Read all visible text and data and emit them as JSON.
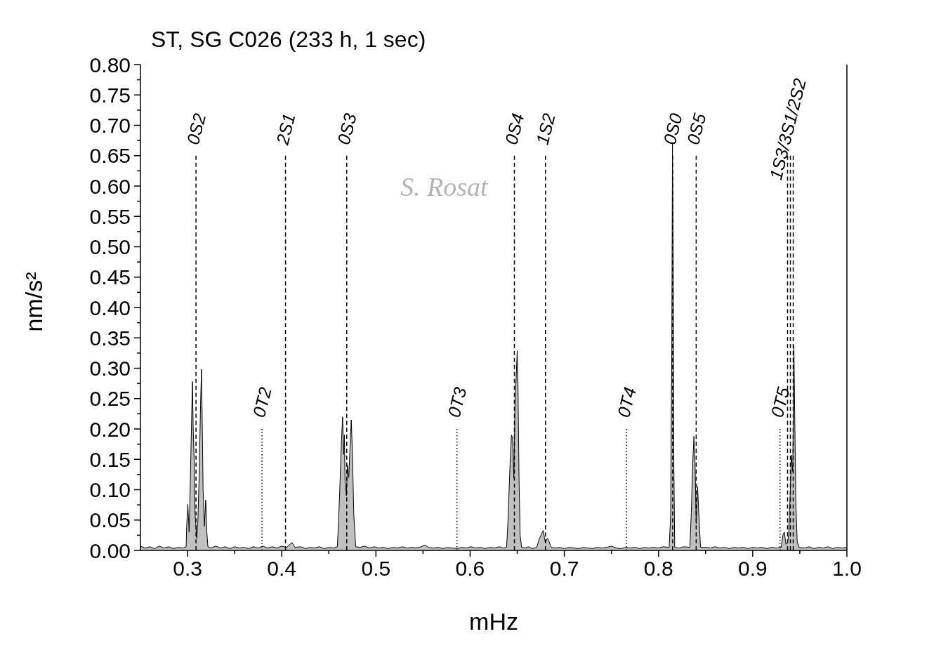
{
  "chart_data": {
    "type": "area",
    "title": "ST, SG C026 (233 h, 1 sec)",
    "xlabel": "mHz",
    "ylabel": "nm/s²",
    "annotations": [
      "S. Rosat"
    ],
    "xlim": [
      0.25,
      1
    ],
    "xticks": [
      0.3,
      {
        "value": 0.35,
        "label": null
      },
      0.4,
      {
        "value": 0.45,
        "label": null
      },
      0.5,
      {
        "value": 0.55,
        "label": null
      },
      0.6,
      {
        "value": 0.65,
        "label": null
      },
      0.7,
      {
        "value": 0.75,
        "label": null
      },
      0.8,
      {
        "value": 0.85,
        "label": null
      },
      0.9,
      {
        "value": 0.95,
        "label": null
      },
      {
        "value": 1,
        "label": "1.0"
      }
    ],
    "ylim": [
      0,
      0.8
    ],
    "yticks": [
      {
        "value": 0,
        "label": "0.00"
      },
      {
        "value": 0.025,
        "label": null
      },
      0.05,
      {
        "value": 0.075,
        "label": null
      },
      {
        "value": 0.1,
        "label": "0.10"
      },
      {
        "value": 0.125,
        "label": null
      },
      0.15,
      {
        "value": 0.175,
        "label": null
      },
      {
        "value": 0.2,
        "label": "0.20"
      },
      {
        "value": 0.225,
        "label": null
      },
      0.25,
      {
        "value": 0.275,
        "label": null
      },
      {
        "value": 0.3,
        "label": "0.30"
      },
      {
        "value": 0.325,
        "label": null
      },
      0.35,
      {
        "value": 0.375,
        "label": null
      },
      {
        "value": 0.4,
        "label": "0.40"
      },
      {
        "value": 0.425,
        "label": null
      },
      0.45,
      {
        "value": 0.475,
        "label": null
      },
      {
        "value": 0.5,
        "label": "0.50"
      },
      {
        "value": 0.525,
        "label": null
      },
      0.55,
      {
        "value": 0.575,
        "label": null
      },
      {
        "value": 0.6,
        "label": "0.60"
      },
      {
        "value": 0.625,
        "label": null
      },
      0.65,
      {
        "value": 0.675,
        "label": null
      },
      {
        "value": 0.7,
        "label": "0.70"
      },
      {
        "value": 0.725,
        "label": null
      },
      0.75,
      {
        "value": 0.775,
        "label": null
      },
      {
        "value": 0.8,
        "label": "0.80"
      }
    ],
    "color": "#c0c0c0",
    "x": [
      0.25,
      0.255,
      0.26,
      0.265,
      0.27,
      0.275,
      0.28,
      0.285,
      0.29,
      0.295,
      0.2985,
      0.2991,
      0.3003,
      0.3017,
      0.3033,
      0.3045,
      0.3052,
      0.306,
      0.307,
      0.308,
      0.3098,
      0.311,
      0.3123,
      0.3138,
      0.3148,
      0.3157,
      0.3165,
      0.3179,
      0.3193,
      0.3205,
      0.3216,
      0.325,
      0.33,
      0.335,
      0.34,
      0.345,
      0.35,
      0.355,
      0.36,
      0.365,
      0.37,
      0.375,
      0.38,
      0.385,
      0.39,
      0.395,
      0.4,
      0.405,
      0.408,
      0.411,
      0.414,
      0.42,
      0.425,
      0.43,
      0.435,
      0.44,
      0.445,
      0.45,
      0.455,
      0.459,
      0.4604,
      0.4619,
      0.4634,
      0.4646,
      0.4657,
      0.4665,
      0.4672,
      0.4686,
      0.4698,
      0.4712,
      0.4725,
      0.4738,
      0.4751,
      0.4765,
      0.4785,
      0.483,
      0.488,
      0.493,
      0.498,
      0.503,
      0.508,
      0.513,
      0.518,
      0.523,
      0.528,
      0.533,
      0.538,
      0.543,
      0.548,
      0.552,
      0.556,
      0.561,
      0.566,
      0.571,
      0.576,
      0.581,
      0.586,
      0.591,
      0.596,
      0.601,
      0.606,
      0.611,
      0.616,
      0.621,
      0.626,
      0.631,
      0.635,
      0.6387,
      0.6402,
      0.6424,
      0.6439,
      0.6451,
      0.6464,
      0.6476,
      0.65,
      0.6509,
      0.6519,
      0.6531,
      0.6546,
      0.658,
      0.662,
      0.666,
      0.6706,
      0.6737,
      0.6776,
      0.6798,
      0.682,
      0.6835,
      0.686,
      0.69,
      0.695,
      0.7,
      0.705,
      0.71,
      0.715,
      0.72,
      0.725,
      0.73,
      0.735,
      0.74,
      0.745,
      0.75,
      0.755,
      0.76,
      0.765,
      0.77,
      0.775,
      0.78,
      0.785,
      0.79,
      0.795,
      0.8,
      0.805,
      0.8113,
      0.8129,
      0.8141,
      0.8148,
      0.8157,
      0.8163,
      0.8172,
      0.822,
      0.827,
      0.8333,
      0.8348,
      0.8363,
      0.8376,
      0.8388,
      0.84,
      0.8415,
      0.8427,
      0.8446,
      0.85,
      0.855,
      0.86,
      0.865,
      0.87,
      0.875,
      0.88,
      0.885,
      0.89,
      0.895,
      0.9,
      0.905,
      0.91,
      0.915,
      0.92,
      0.925,
      0.9302,
      0.9322,
      0.9336,
      0.9353,
      0.9369,
      0.9382,
      0.9397,
      0.941,
      0.9425,
      0.9437,
      0.9448,
      0.9458,
      0.9472,
      0.9492,
      0.955,
      0.96,
      0.965,
      0.97,
      0.975,
      0.98,
      0.985,
      0.99,
      0.995,
      1
    ],
    "values": [
      0.007,
      0.004,
      0.006,
      0.003,
      0.007,
      0.004,
      0.006,
      0.003,
      0.005,
      0.004,
      0.006,
      0.04,
      0.076,
      0.03,
      0.14,
      0.23,
      0.278,
      0.2,
      0.15,
      0.06,
      0.02,
      0.05,
      0.12,
      0.24,
      0.298,
      0.2,
      0.1,
      0.04,
      0.083,
      0.03,
      0.006,
      0.004,
      0.007,
      0.004,
      0.006,
      0.003,
      0.006,
      0.004,
      0.005,
      0.003,
      0.006,
      0.004,
      0.007,
      0.004,
      0.006,
      0.004,
      0.007,
      0.005,
      0.009,
      0.013,
      0.005,
      0.006,
      0.003,
      0.005,
      0.004,
      0.006,
      0.003,
      0.005,
      0.004,
      0.006,
      0.05,
      0.113,
      0.18,
      0.22,
      0.158,
      0.19,
      0.117,
      0.09,
      0.14,
      0.12,
      0.17,
      0.215,
      0.158,
      0.059,
      0.006,
      0.005,
      0.007,
      0.004,
      0.006,
      0.004,
      0.005,
      0.003,
      0.005,
      0.004,
      0.006,
      0.004,
      0.005,
      0.004,
      0.006,
      0.009,
      0.005,
      0.004,
      0.005,
      0.003,
      0.005,
      0.004,
      0.003,
      0.005,
      0.004,
      0.006,
      0.004,
      0.005,
      0.003,
      0.005,
      0.004,
      0.006,
      0.004,
      0.005,
      0.048,
      0.143,
      0.19,
      0.185,
      0.119,
      0.237,
      0.329,
      0.261,
      0.119,
      0.025,
      0.005,
      0.004,
      0.006,
      0.003,
      0.005,
      0.02,
      0.033,
      0.013,
      0.02,
      0.016,
      0.005,
      0.004,
      0.005,
      0.003,
      0.005,
      0.004,
      0.003,
      0.005,
      0.004,
      0.003,
      0.005,
      0.004,
      0.005,
      0.007,
      0.004,
      0.003,
      0.005,
      0.004,
      0.005,
      0.003,
      0.005,
      0.004,
      0.005,
      0.004,
      0.006,
      0.005,
      0.058,
      0.332,
      0.672,
      0.45,
      0.139,
      0.005,
      0.004,
      0.006,
      0.005,
      0.063,
      0.143,
      0.188,
      0.143,
      0.044,
      0.105,
      0.063,
      0.005,
      0.005,
      0.004,
      0.006,
      0.004,
      0.005,
      0.003,
      0.005,
      0.004,
      0.005,
      0.003,
      0.005,
      0.004,
      0.005,
      0.003,
      0.005,
      0.004,
      0.005,
      0.026,
      0.03,
      0.01,
      0.013,
      0.025,
      0.089,
      0.157,
      0.13,
      0.337,
      0.199,
      0.079,
      0.015,
      0.005,
      0.004,
      0.006,
      0.003,
      0.005,
      0.004,
      0.006,
      0.003,
      0.005,
      0.004,
      0.005
    ],
    "ref_lines": [
      {
        "axis": "x",
        "value": 0.309,
        "label": "0S2",
        "color": "#000000",
        "line_style": "dashed"
      },
      {
        "axis": "x",
        "value": 0.379,
        "label": "0T2",
        "color": "#000000",
        "line_style": "dotted"
      },
      {
        "axis": "x",
        "value": 0.404,
        "label": "2S1",
        "color": "#000000",
        "line_style": "dashed"
      },
      {
        "axis": "x",
        "value": 0.469,
        "label": "0S3",
        "color": "#000000",
        "line_style": "dashed"
      },
      {
        "axis": "x",
        "value": 0.586,
        "label": "0T3",
        "color": "#000000",
        "line_style": "dotted"
      },
      {
        "axis": "x",
        "value": 0.647,
        "label": "0S4",
        "color": "#000000",
        "line_style": "dashed"
      },
      {
        "axis": "x",
        "value": 0.68,
        "label": "1S2",
        "color": "#000000",
        "line_style": "dashed"
      },
      {
        "axis": "x",
        "value": 0.766,
        "label": "0T4",
        "color": "#000000",
        "line_style": "dotted"
      },
      {
        "axis": "x",
        "value": 0.815,
        "label": "0S0",
        "color": "#000000",
        "line_style": "dashed"
      },
      {
        "axis": "x",
        "value": 0.84,
        "label": "0S5",
        "color": "#000000",
        "line_style": "dashed"
      },
      {
        "axis": "x",
        "value": 0.929,
        "label": "0T5",
        "color": "#000000",
        "line_style": "dotted"
      },
      {
        "axis": "x",
        "value": 0.937,
        "label": "1S3/3S1/2S2",
        "color": "#000000",
        "line_style": "dashed"
      },
      {
        "axis": "x",
        "value": 0.94,
        "color": "#000000",
        "line_style": "dashed"
      },
      {
        "axis": "x",
        "value": 0.943,
        "color": "#000000",
        "line_style": "dashed"
      }
    ]
  }
}
